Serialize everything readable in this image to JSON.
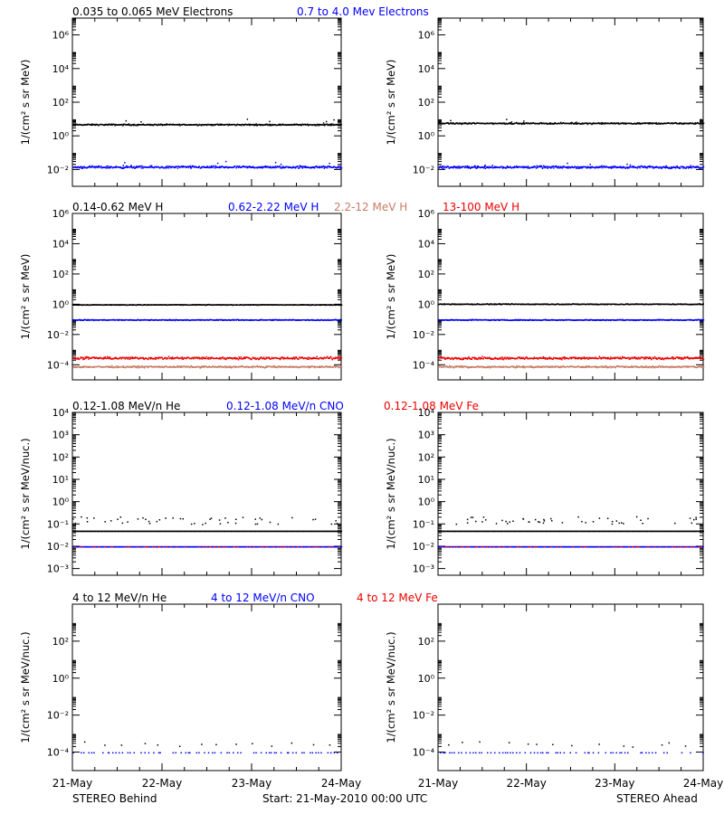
{
  "chart_data": [
    {
      "type": "scatter",
      "row": 0,
      "title_entries": [
        {
          "text": "0.035 to 0.065 MeV Electrons",
          "color": "#000000"
        },
        {
          "text": "0.7 to 4.0 Mev Electrons",
          "color": "#0000ff"
        }
      ],
      "ylabel": "1/(cm² s sr MeV)",
      "yscale": "log",
      "ylim_exp": [
        -3,
        7
      ],
      "yticks": [
        "10⁻²",
        "10⁰",
        "10²",
        "10⁴",
        "10⁶"
      ],
      "xlim_days": [
        0,
        3
      ],
      "panels": [
        {
          "side": "behind",
          "series": [
            {
              "color": "#000000",
              "level": 5,
              "spread": 0.06,
              "outliers": 0.02
            },
            {
              "color": "#0000ff",
              "level": 0.015,
              "spread": 0.1,
              "outliers": 0.03
            }
          ]
        },
        {
          "side": "ahead",
          "series": [
            {
              "color": "#000000",
              "level": 6,
              "spread": 0.06,
              "outliers": 0.02
            },
            {
              "color": "#0000ff",
              "level": 0.015,
              "spread": 0.1,
              "outliers": 0.03
            }
          ]
        }
      ]
    },
    {
      "type": "scatter",
      "row": 1,
      "title_entries": [
        {
          "text": "0.14-0.62 MeV H",
          "color": "#000000"
        },
        {
          "text": "0.62-2.22 MeV H",
          "color": "#0000ff"
        },
        {
          "text": "2.2-12 MeV H",
          "color": "#c87c64"
        },
        {
          "text": "13-100 MeV H",
          "color": "#ee0000"
        }
      ],
      "ylabel": "1/(cm² s sr MeV)",
      "yscale": "log",
      "ylim_exp": [
        -5,
        6
      ],
      "yticks": [
        "10⁻⁴",
        "10⁻²",
        "10⁰",
        "10²",
        "10⁴",
        "10⁶"
      ],
      "xlim_days": [
        0,
        3
      ],
      "panels": [
        {
          "side": "behind",
          "series": [
            {
              "color": "#000000",
              "level": 1.0,
              "spread": 0.03,
              "outliers": 0.0
            },
            {
              "color": "#0000ff",
              "level": 0.1,
              "spread": 0.04,
              "outliers": 0.0
            },
            {
              "color": "#ee0000",
              "level": 0.0003,
              "spread": 0.12,
              "outliers": 0.0
            },
            {
              "color": "#c87c64",
              "level": 8e-05,
              "spread": 0.08,
              "outliers": 0.0
            }
          ]
        },
        {
          "side": "ahead",
          "series": [
            {
              "color": "#000000",
              "level": 1.1,
              "spread": 0.04,
              "outliers": 0.0
            },
            {
              "color": "#0000ff",
              "level": 0.1,
              "spread": 0.04,
              "outliers": 0.0
            },
            {
              "color": "#ee0000",
              "level": 0.0003,
              "spread": 0.12,
              "outliers": 0.0
            },
            {
              "color": "#c87c64",
              "level": 8e-05,
              "spread": 0.08,
              "outliers": 0.0
            }
          ]
        }
      ]
    },
    {
      "type": "scatter",
      "row": 2,
      "title_entries": [
        {
          "text": "0.12-1.08 MeV/n He",
          "color": "#000000"
        },
        {
          "text": "0.12-1.08 MeV/n CNO",
          "color": "#0000ff"
        },
        {
          "text": "0.12-1.08 MeV Fe",
          "color": "#ee0000"
        }
      ],
      "ylabel": "1/(cm² s sr MeV/nuc.)",
      "yscale": "log",
      "ylim_exp": [
        -3.3,
        4
      ],
      "yticks": [
        "10⁻³",
        "10⁻²",
        "10⁻¹",
        "10⁰",
        "10¹",
        "10²",
        "10³",
        "10⁴"
      ],
      "xlim_days": [
        0,
        3
      ],
      "panels": [
        {
          "side": "behind",
          "series": [
            {
              "color": "#000000",
              "level": 0.05,
              "spread": 0.0,
              "outliers": 0.12,
              "outlier_level": 0.1
            },
            {
              "color": "#0000ff",
              "level": 0.01,
              "spread": 0.0,
              "outliers": 0.0
            },
            {
              "color": "#ee0000",
              "level": 0.01,
              "spread": 0.0,
              "outliers": 0.0,
              "sparse": true
            }
          ]
        },
        {
          "side": "ahead",
          "series": [
            {
              "color": "#000000",
              "level": 0.05,
              "spread": 0.0,
              "outliers": 0.12,
              "outlier_level": 0.1
            },
            {
              "color": "#0000ff",
              "level": 0.01,
              "spread": 0.0,
              "outliers": 0.0
            },
            {
              "color": "#ee0000",
              "level": 0.01,
              "spread": 0.0,
              "outliers": 0.0,
              "sparse": true
            }
          ]
        }
      ]
    },
    {
      "type": "scatter",
      "row": 3,
      "title_entries": [
        {
          "text": "4 to 12 MeV/n He",
          "color": "#000000"
        },
        {
          "text": "4 to 12 MeV/n CNO",
          "color": "#0000ff"
        },
        {
          "text": "4 to 12 MeV Fe",
          "color": "#ee0000"
        }
      ],
      "ylabel": "1/(cm² s sr MeV/nuc.)",
      "yscale": "log",
      "ylim_exp": [
        -5,
        4
      ],
      "yticks": [
        "10⁻⁴",
        "10⁻²",
        "10⁰",
        "10²"
      ],
      "xlim_days": [
        0,
        3
      ],
      "panels": [
        {
          "side": "behind",
          "series": [
            {
              "color": "#0000ff",
              "level": 0.0001,
              "spread": 0.0,
              "outliers": 0.0,
              "sparse": true
            },
            {
              "color": "#000000",
              "level": 0.0002,
              "spread": 0.0,
              "outliers": 0.0,
              "very_sparse": true
            }
          ]
        },
        {
          "side": "ahead",
          "series": [
            {
              "color": "#0000ff",
              "level": 0.0001,
              "spread": 0.0,
              "outliers": 0.0,
              "sparse": true
            },
            {
              "color": "#000000",
              "level": 0.0002,
              "spread": 0.0,
              "outliers": 0.0,
              "very_sparse": true
            }
          ]
        }
      ]
    }
  ],
  "x_axis": {
    "tick_labels": [
      "21-May",
      "22-May",
      "23-May",
      "24-May"
    ]
  },
  "footer": {
    "left": "STEREO Behind",
    "center": "Start: 21-May-2010 00:00 UTC",
    "right": "STEREO Ahead"
  }
}
